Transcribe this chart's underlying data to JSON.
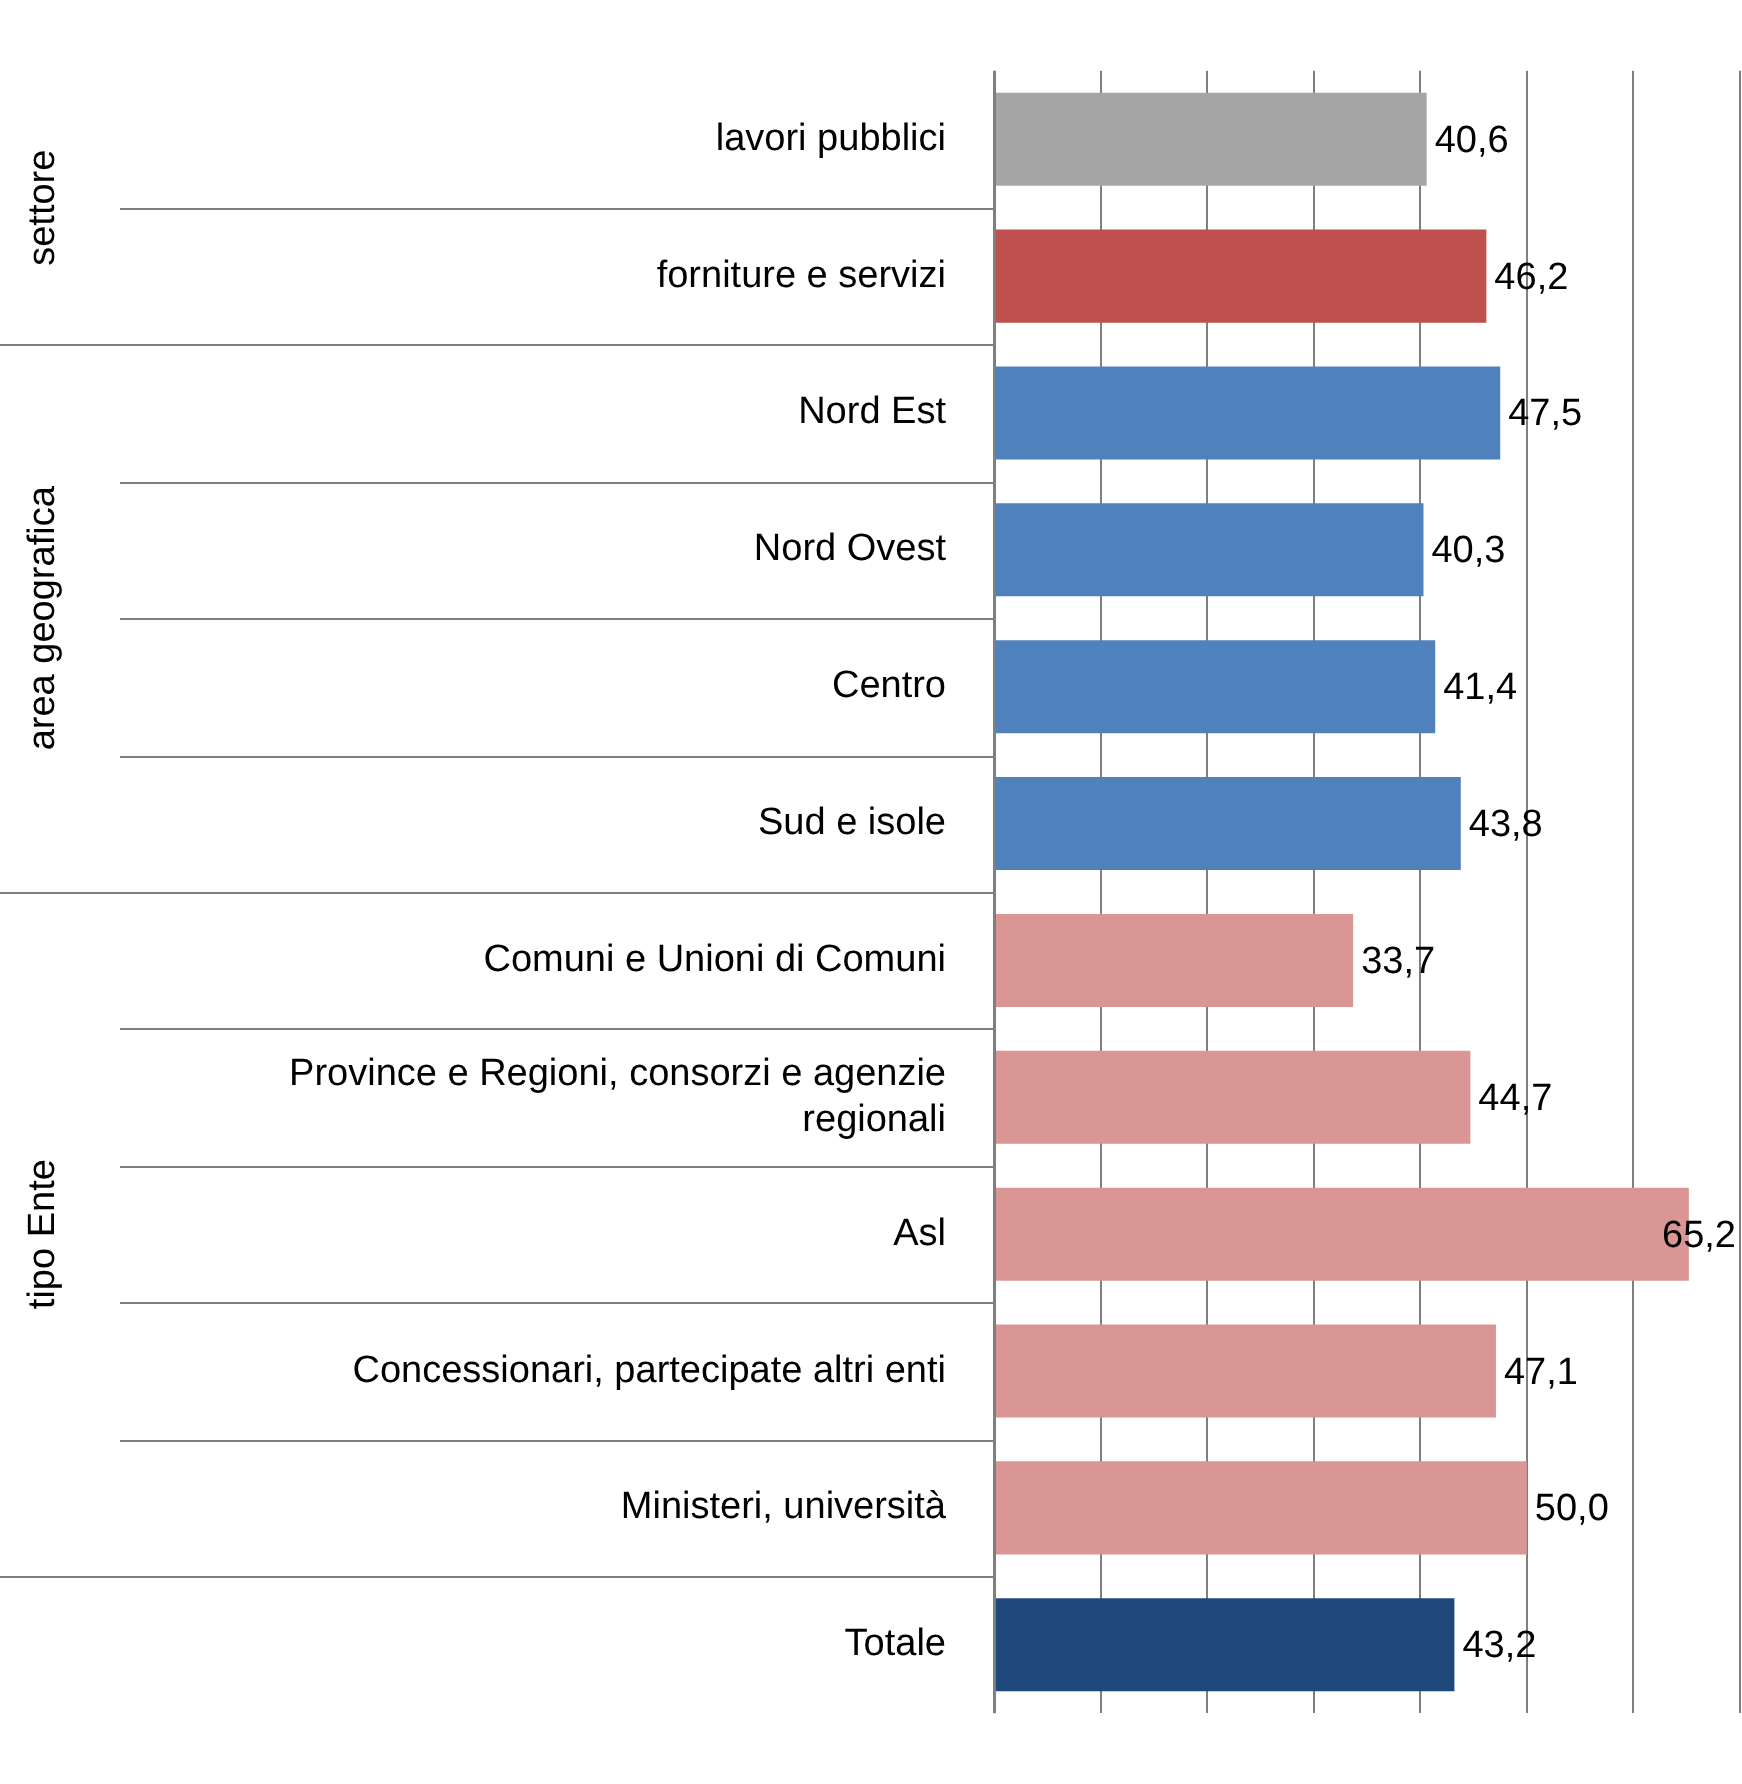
{
  "chart_data": {
    "type": "bar",
    "orientation": "horizontal",
    "categories": [
      "lavori pubblici",
      "forniture e servizi",
      "Nord Est",
      "Nord Ovest",
      "Centro",
      "Sud e isole",
      "Comuni e Unioni di Comuni",
      "Province e Regioni, consorzi e agenzie regionali",
      "Asl",
      "Concessionari, partecipate altri enti",
      "Ministeri, università",
      "Totale"
    ],
    "values": [
      40.6,
      46.2,
      47.5,
      40.3,
      41.4,
      43.8,
      33.7,
      44.7,
      65.2,
      47.1,
      50.0,
      43.2
    ],
    "colors": [
      "#a5a5a5",
      "#c0504d",
      "#4f81bd",
      "#4f81bd",
      "#4f81bd",
      "#4f81bd",
      "#d99694",
      "#d99694",
      "#d99694",
      "#d99694",
      "#d99694",
      "#1f497d"
    ],
    "value_labels": [
      "40,6",
      "46,2",
      "47,5",
      "40,3",
      "41,4",
      "43,8",
      "33,7",
      "44,7",
      "65,2",
      "47,1",
      "50,0",
      "43,2"
    ],
    "tick_labels": "y",
    "grid": "x",
    "legend": false,
    "annotations": [
      "settore",
      "area geografica",
      "tipo Ente"
    ]
  }
}
